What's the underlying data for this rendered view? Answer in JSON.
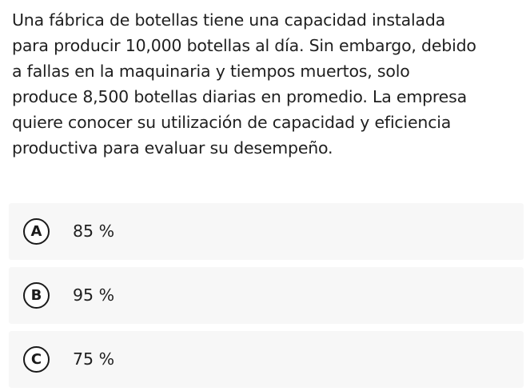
{
  "question": {
    "lines": [
      "Una fábrica de botellas tiene una capacidad instalada",
      "para producir 10,000 botellas al día. Sin embargo, debido",
      "a fallas en la maquinaria y tiempos muertos, solo",
      "produce 8,500 botellas diarias en promedio. La empresa",
      "quiere conocer su utilización de capacidad y eficiencia",
      "productiva para evaluar su desempeño."
    ]
  },
  "options": [
    {
      "letter": "A",
      "text": "85 %"
    },
    {
      "letter": "B",
      "text": "95 %"
    },
    {
      "letter": "C",
      "text": "75 %"
    }
  ]
}
